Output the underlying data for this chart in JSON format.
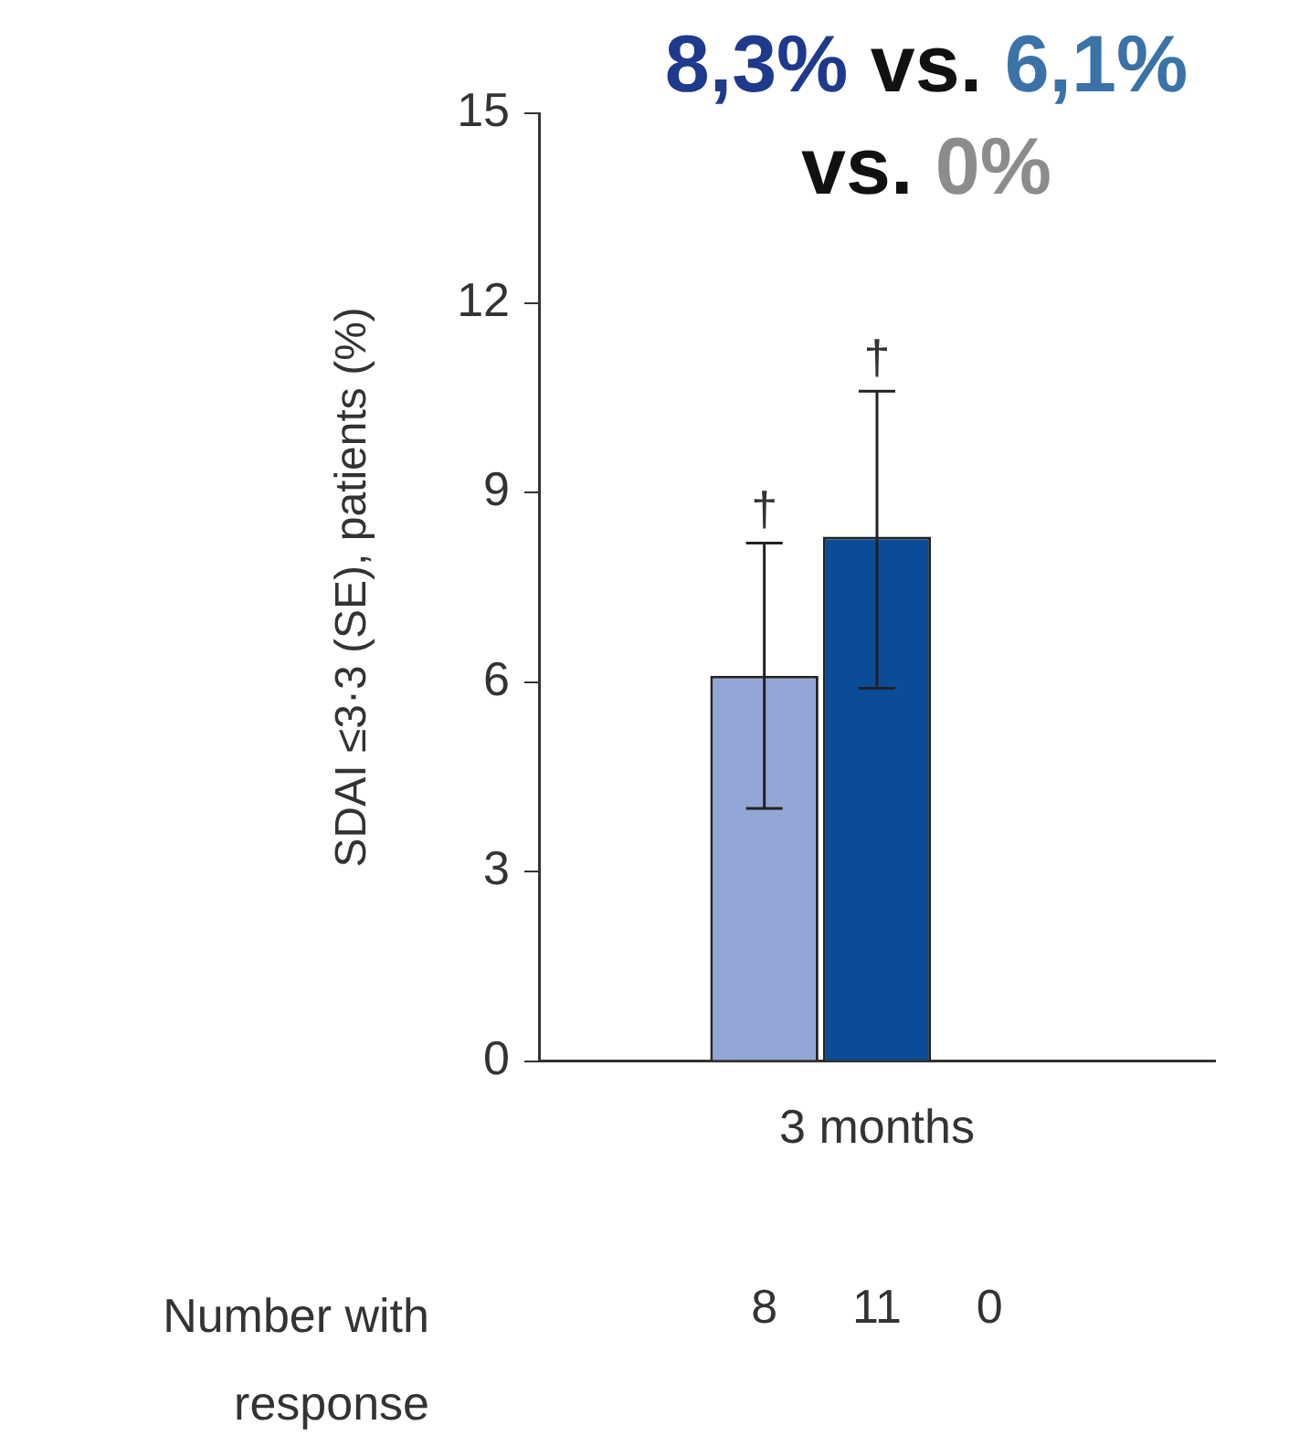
{
  "chart_data": {
    "type": "bar",
    "ylabel": "SDAI ≤3·3 (SE), patients (%)",
    "categories": [
      "3 months"
    ],
    "series": [
      {
        "color": "#93a6d6",
        "values": [
          6.1
        ],
        "errors": [
          [
            4.0,
            8.2
          ]
        ]
      },
      {
        "color": "#0b4c96",
        "values": [
          8.3
        ],
        "errors": [
          [
            5.9,
            10.6
          ]
        ]
      },
      {
        "color": "#8c8c8c",
        "values": [
          0
        ]
      }
    ],
    "ylim": [
      0,
      15
    ],
    "yticks": [
      0,
      3,
      6,
      9,
      12,
      15
    ],
    "grid": false,
    "legend": false,
    "annotations": [
      "8,3%",
      "vs.",
      "6,1%",
      "vs.",
      "0%",
      "Number with response",
      "8",
      "11",
      "0",
      {
        "text": "†",
        "x": "3 months",
        "y": 8.2
      },
      {
        "text": "†",
        "x": "3 months",
        "y": 10.6
      }
    ]
  }
}
